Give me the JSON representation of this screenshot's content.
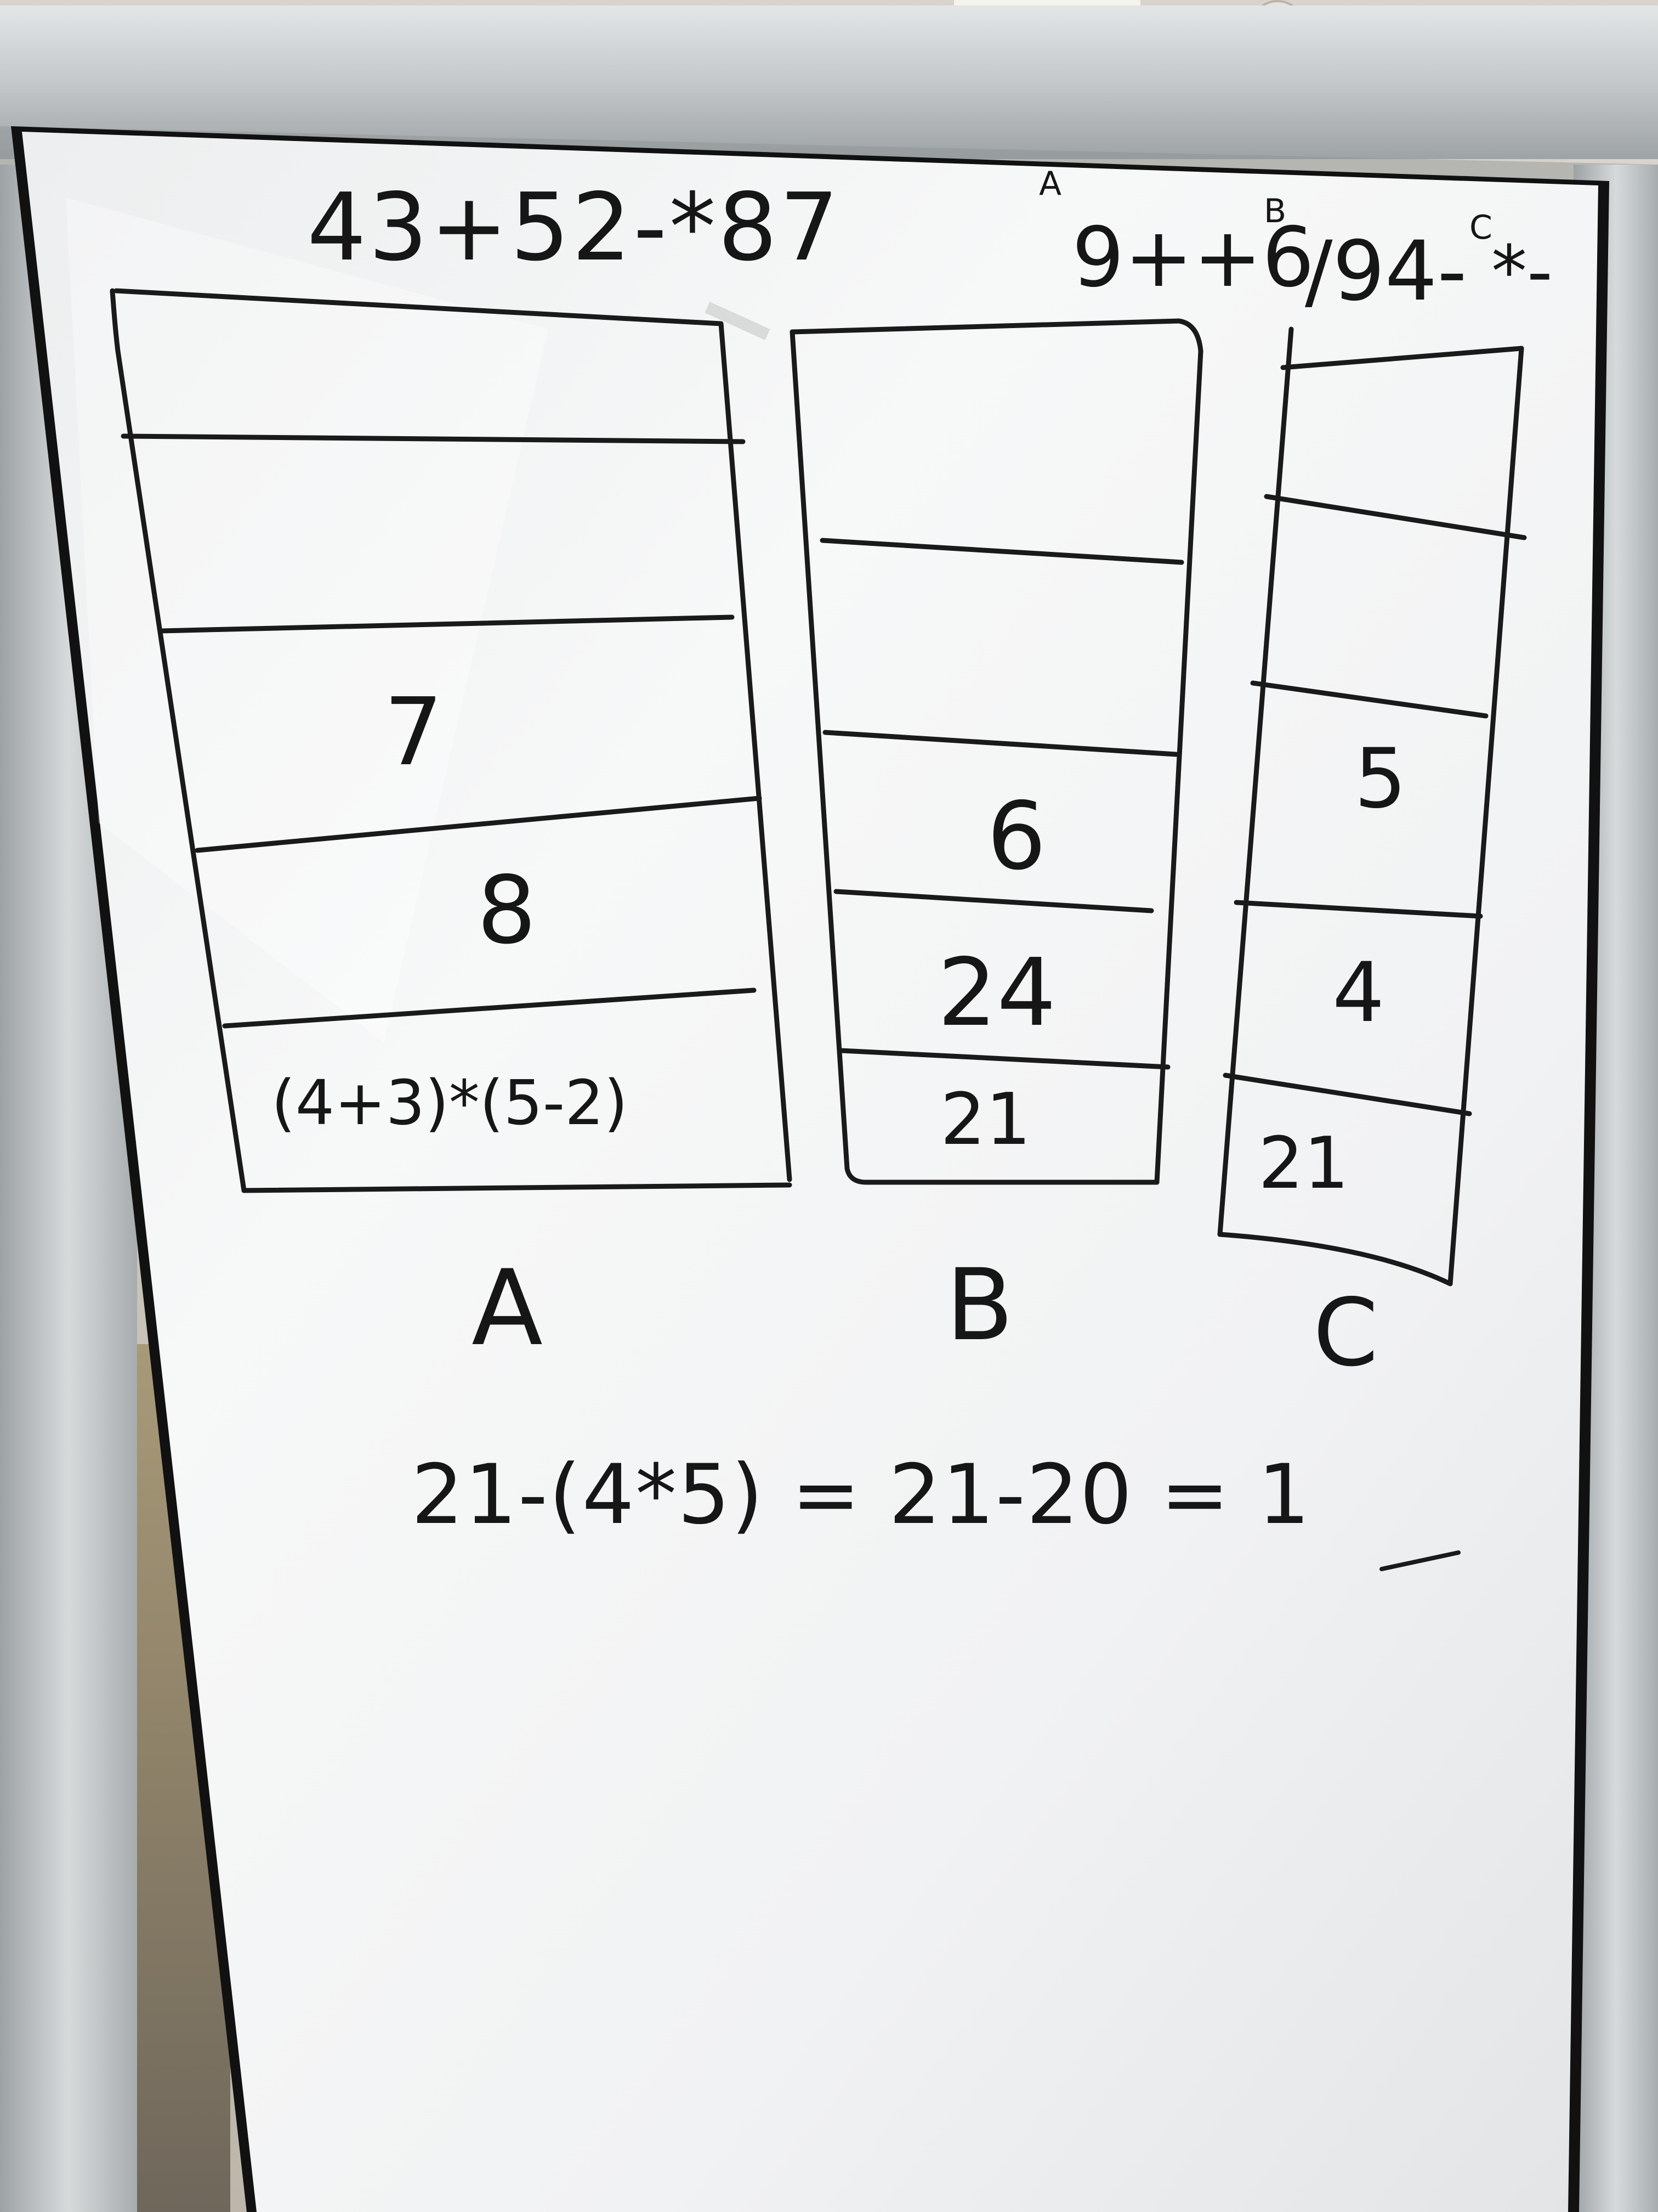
{
  "whiteboard": {
    "top_sequence": "43+52-*87",
    "top_sequence_2": "9++6",
    "top_sequence_3": "/94-",
    "top_sequence_4": "*-",
    "marker_a": "A",
    "marker_b": "B",
    "marker_c": "C"
  },
  "stack_a": {
    "label": "A",
    "cells": [
      "7",
      "8",
      "(4+3)*(5-2)"
    ]
  },
  "stack_b": {
    "label": "B",
    "cells": [
      "6",
      "24",
      "21"
    ]
  },
  "stack_c": {
    "label": "C",
    "cells": [
      "5",
      "4",
      "21"
    ]
  },
  "result": {
    "equation": "21-(4*5) = 21-20 = 1"
  },
  "colors": {
    "ink": "#161616",
    "board": "#f6f7f7",
    "frame": "#c9cccd",
    "carpet": "#7d7466"
  }
}
